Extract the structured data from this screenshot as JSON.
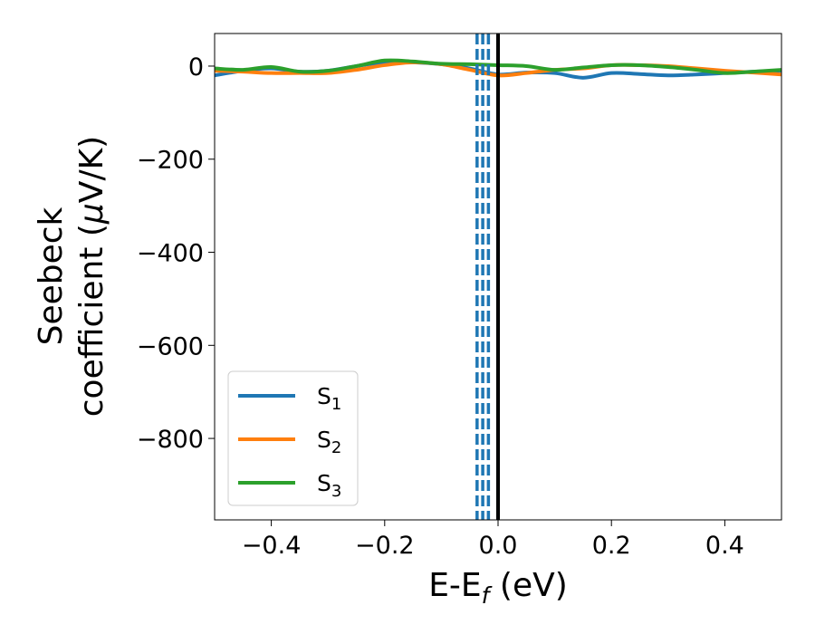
{
  "chart_data": {
    "type": "line",
    "xlabel": "E-E",
    "xlabel_sub": "f",
    "xlabel_unit": " (eV)",
    "ylabel_line1": "Seebeck",
    "ylabel_line2": "coefficient  (",
    "ylabel_mu": "μ",
    "ylabel_unit": "V/K)",
    "xlim": [
      -0.5,
      0.5
    ],
    "ylim": [
      -975,
      70
    ],
    "xticks": [
      -0.4,
      -0.2,
      0.0,
      0.2,
      0.4
    ],
    "xtick_labels": [
      "−0.4",
      "−0.2",
      "0.0",
      "0.2",
      "0.4"
    ],
    "yticks": [
      0,
      -200,
      -400,
      -600,
      -800
    ],
    "ytick_labels": [
      "0",
      "−200",
      "−400",
      "−600",
      "−800"
    ],
    "legend_position": "lower-left",
    "grid": false,
    "vertical_lines": [
      {
        "x": 0.0,
        "style": "solid",
        "color": "#000000"
      },
      {
        "x": -0.037,
        "style": "dashed",
        "color": "#1f77b4"
      },
      {
        "x": -0.027,
        "style": "dashed",
        "color": "#1f77b4"
      },
      {
        "x": -0.017,
        "style": "dashed",
        "color": "#1f77b4"
      }
    ],
    "series": [
      {
        "name": "S",
        "sub": "1",
        "color": "#1f77b4",
        "x": [
          -0.5,
          -0.45,
          -0.4,
          -0.35,
          -0.3,
          -0.25,
          -0.2,
          -0.15,
          -0.1,
          -0.05,
          0.0,
          0.05,
          0.1,
          0.15,
          0.2,
          0.25,
          0.3,
          0.35,
          0.4,
          0.45,
          0.5
        ],
        "y": [
          -20,
          -10,
          -5,
          -12,
          -10,
          0,
          8,
          8,
          4,
          -5,
          -18,
          -14,
          -15,
          -25,
          -15,
          -17,
          -20,
          -18,
          -15,
          -12,
          -10
        ]
      },
      {
        "name": "S",
        "sub": "2",
        "color": "#ff7f0e",
        "x": [
          -0.5,
          -0.45,
          -0.4,
          -0.35,
          -0.3,
          -0.25,
          -0.2,
          -0.15,
          -0.1,
          -0.05,
          0.0,
          0.05,
          0.1,
          0.15,
          0.2,
          0.25,
          0.3,
          0.35,
          0.4,
          0.45,
          0.5
        ],
        "y": [
          -10,
          -12,
          -15,
          -15,
          -15,
          -8,
          2,
          8,
          4,
          -8,
          -20,
          -15,
          -8,
          -5,
          2,
          2,
          0,
          -5,
          -10,
          -14,
          -18
        ]
      },
      {
        "name": "S",
        "sub": "3",
        "color": "#2ca02c",
        "x": [
          -0.5,
          -0.45,
          -0.4,
          -0.35,
          -0.3,
          -0.25,
          -0.2,
          -0.15,
          -0.1,
          -0.05,
          0.0,
          0.05,
          0.1,
          0.15,
          0.2,
          0.25,
          0.3,
          0.35,
          0.4,
          0.45,
          0.5
        ],
        "y": [
          -5,
          -8,
          -2,
          -12,
          -10,
          0,
          12,
          10,
          5,
          4,
          2,
          0,
          -8,
          -3,
          2,
          2,
          -2,
          -8,
          -15,
          -12,
          -8
        ]
      }
    ]
  }
}
